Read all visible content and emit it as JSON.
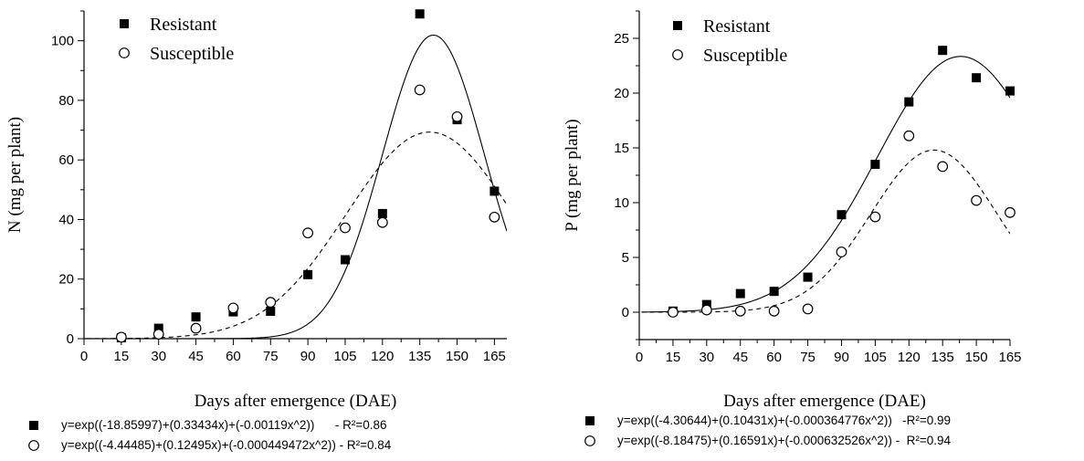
{
  "chart_data": [
    {
      "type": "scatter",
      "title": "",
      "xlabel": "Days after emergence (DAE)",
      "ylabel": "N (mg per plant)",
      "xlim": [
        0,
        170
      ],
      "ylim": [
        0,
        110
      ],
      "x_ticks": [
        0,
        15,
        30,
        45,
        60,
        75,
        90,
        105,
        120,
        135,
        150,
        165
      ],
      "y_ticks": [
        0,
        20,
        40,
        60,
        80,
        100
      ],
      "legend_position": "top-left",
      "series": [
        {
          "name": "Resistant",
          "marker": "filled-square",
          "x": [
            15,
            30,
            45,
            60,
            75,
            90,
            105,
            120,
            135,
            150,
            165
          ],
          "y": [
            0.3,
            3.5,
            7.3,
            9.0,
            9.2,
            21.5,
            26.5,
            42.0,
            109.0,
            73.5,
            49.5
          ],
          "fit": {
            "a": -18.85997,
            "b": 0.33434,
            "c": -0.00119,
            "style": "solid"
          }
        },
        {
          "name": "Susceptible",
          "marker": "open-circle",
          "x": [
            15,
            30,
            45,
            60,
            75,
            90,
            105,
            120,
            135,
            150,
            165
          ],
          "y": [
            0.5,
            1.5,
            3.5,
            10.3,
            12.2,
            35.5,
            37.2,
            39.0,
            83.5,
            74.5,
            40.8
          ],
          "fit": {
            "a": -4.44485,
            "b": 0.12495,
            "c": -0.000449472,
            "style": "dashed"
          }
        }
      ],
      "equations": [
        {
          "marker": "filled-square",
          "text": "y=exp((-18.85997)+(0.33434x)+(-0.00119x^2))      - R²=0.86"
        },
        {
          "marker": "open-circle",
          "text": "y=exp((-4.44485)+(0.12495x)+(-0.000449472x^2)) - R²=0.84"
        }
      ]
    },
    {
      "type": "scatter",
      "title": "",
      "xlabel": "Days after emergence (DAE)",
      "ylabel": "P (mg per plant)",
      "xlim": [
        0,
        165
      ],
      "ylim": [
        -2.5,
        27.5
      ],
      "x_ticks": [
        0,
        15,
        30,
        45,
        60,
        75,
        90,
        105,
        120,
        135,
        150,
        165
      ],
      "y_ticks": [
        0,
        5,
        10,
        15,
        20,
        25
      ],
      "legend_position": "top-left",
      "series": [
        {
          "name": "Resistant",
          "marker": "filled-square",
          "x": [
            15,
            30,
            45,
            60,
            75,
            90,
            105,
            120,
            135,
            150,
            165
          ],
          "y": [
            0.1,
            0.7,
            1.7,
            1.9,
            3.2,
            8.9,
            13.5,
            19.2,
            23.9,
            21.4,
            20.2
          ],
          "fit": {
            "a": -4.30644,
            "b": 0.10431,
            "c": -0.000364776,
            "style": "solid"
          }
        },
        {
          "name": "Susceptible",
          "marker": "open-circle",
          "x": [
            15,
            30,
            45,
            60,
            75,
            90,
            105,
            120,
            135,
            150,
            165
          ],
          "y": [
            0.0,
            0.2,
            0.1,
            0.1,
            0.3,
            5.5,
            8.7,
            16.1,
            13.3,
            10.2,
            9.1
          ],
          "fit": {
            "a": -8.18475,
            "b": 0.16591,
            "c": -0.000632526,
            "style": "dashed"
          }
        }
      ],
      "equations": [
        {
          "marker": "filled-square",
          "text": "y=exp((-4.30644)+(0.10431x)+(-0.000364776x^2))   -R²=0.99"
        },
        {
          "marker": "open-circle",
          "text": "y=exp((-8.18475)+(0.16591x)+(-0.000632526x^2)) -  R²=0.94"
        }
      ]
    }
  ]
}
